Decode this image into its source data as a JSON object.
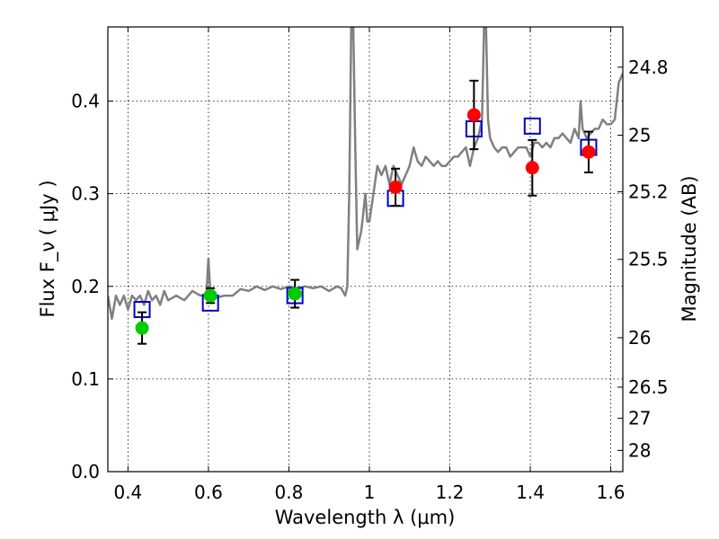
{
  "chart_data": {
    "type": "scatter",
    "xlabel": "Wavelength  λ (μm)",
    "ylabel": "Flux  F_ν  ( μJy )",
    "ylabel_right": "Magnitude (AB)",
    "xlim": [
      0.35,
      1.63
    ],
    "ylim": [
      0.0,
      0.48
    ],
    "grid": true,
    "x_ticks": [
      {
        "value": 0.4,
        "label": "0.4"
      },
      {
        "value": 0.6,
        "label": "0.6"
      },
      {
        "value": 0.8,
        "label": "0.8"
      },
      {
        "value": 1.0,
        "label": "1"
      },
      {
        "value": 1.2,
        "label": "1.2"
      },
      {
        "value": 1.4,
        "label": "1.4"
      },
      {
        "value": 1.6,
        "label": "1.6"
      }
    ],
    "y_ticks": [
      {
        "value": 0.0,
        "label": "0.0"
      },
      {
        "value": 0.1,
        "label": "0.1"
      },
      {
        "value": 0.2,
        "label": "0.2"
      },
      {
        "value": 0.3,
        "label": "0.3"
      },
      {
        "value": 0.4,
        "label": "0.4"
      }
    ],
    "right_ticks": [
      {
        "value": 24.8,
        "label": "24.8"
      },
      {
        "value": 25.0,
        "label": "25"
      },
      {
        "value": 25.2,
        "label": "25.2"
      },
      {
        "value": 25.5,
        "label": "25.5"
      },
      {
        "value": 26.0,
        "label": "26"
      },
      {
        "value": 26.5,
        "label": "26.5"
      },
      {
        "value": 27.0,
        "label": "27"
      },
      {
        "value": 28.0,
        "label": "28"
      }
    ],
    "series": [
      {
        "kind": "spectrum",
        "color": "#808080",
        "points": [
          [
            0.35,
            0.19
          ],
          [
            0.36,
            0.165
          ],
          [
            0.37,
            0.19
          ],
          [
            0.38,
            0.18
          ],
          [
            0.39,
            0.19
          ],
          [
            0.4,
            0.175
          ],
          [
            0.41,
            0.19
          ],
          [
            0.42,
            0.185
          ],
          [
            0.43,
            0.19
          ],
          [
            0.44,
            0.18
          ],
          [
            0.45,
            0.195
          ],
          [
            0.46,
            0.185
          ],
          [
            0.47,
            0.19
          ],
          [
            0.48,
            0.18
          ],
          [
            0.49,
            0.195
          ],
          [
            0.5,
            0.185
          ],
          [
            0.52,
            0.19
          ],
          [
            0.54,
            0.185
          ],
          [
            0.56,
            0.195
          ],
          [
            0.58,
            0.19
          ],
          [
            0.595,
            0.192
          ],
          [
            0.6,
            0.23
          ],
          [
            0.605,
            0.19
          ],
          [
            0.62,
            0.188
          ],
          [
            0.64,
            0.19
          ],
          [
            0.66,
            0.19
          ],
          [
            0.68,
            0.197
          ],
          [
            0.7,
            0.195
          ],
          [
            0.72,
            0.2
          ],
          [
            0.74,
            0.196
          ],
          [
            0.76,
            0.2
          ],
          [
            0.78,
            0.197
          ],
          [
            0.8,
            0.2
          ],
          [
            0.82,
            0.198
          ],
          [
            0.84,
            0.2
          ],
          [
            0.86,
            0.198
          ],
          [
            0.88,
            0.2
          ],
          [
            0.9,
            0.195
          ],
          [
            0.92,
            0.2
          ],
          [
            0.93,
            0.198
          ],
          [
            0.94,
            0.19
          ],
          [
            0.945,
            0.2
          ],
          [
            0.95,
            0.3
          ],
          [
            0.955,
            0.48
          ],
          [
            0.96,
            0.48
          ],
          [
            0.965,
            0.35
          ],
          [
            0.97,
            0.24
          ],
          [
            0.98,
            0.26
          ],
          [
            0.985,
            0.28
          ],
          [
            0.99,
            0.3
          ],
          [
            0.995,
            0.27
          ],
          [
            1.0,
            0.27
          ],
          [
            1.01,
            0.3
          ],
          [
            1.02,
            0.33
          ],
          [
            1.03,
            0.32
          ],
          [
            1.04,
            0.33
          ],
          [
            1.05,
            0.31
          ],
          [
            1.06,
            0.33
          ],
          [
            1.07,
            0.32
          ],
          [
            1.08,
            0.31
          ],
          [
            1.09,
            0.32
          ],
          [
            1.1,
            0.33
          ],
          [
            1.11,
            0.35
          ],
          [
            1.12,
            0.335
          ],
          [
            1.13,
            0.33
          ],
          [
            1.14,
            0.34
          ],
          [
            1.15,
            0.335
          ],
          [
            1.16,
            0.33
          ],
          [
            1.17,
            0.335
          ],
          [
            1.18,
            0.33
          ],
          [
            1.19,
            0.33
          ],
          [
            1.2,
            0.335
          ],
          [
            1.21,
            0.34
          ],
          [
            1.22,
            0.34
          ],
          [
            1.23,
            0.345
          ],
          [
            1.24,
            0.35
          ],
          [
            1.25,
            0.33
          ],
          [
            1.26,
            0.35
          ],
          [
            1.27,
            0.36
          ],
          [
            1.28,
            0.38
          ],
          [
            1.285,
            0.48
          ],
          [
            1.29,
            0.48
          ],
          [
            1.295,
            0.38
          ],
          [
            1.3,
            0.36
          ],
          [
            1.31,
            0.35
          ],
          [
            1.32,
            0.345
          ],
          [
            1.33,
            0.35
          ],
          [
            1.34,
            0.35
          ],
          [
            1.35,
            0.34
          ],
          [
            1.36,
            0.345
          ],
          [
            1.37,
            0.35
          ],
          [
            1.38,
            0.35
          ],
          [
            1.39,
            0.35
          ],
          [
            1.4,
            0.34
          ],
          [
            1.41,
            0.355
          ],
          [
            1.42,
            0.355
          ],
          [
            1.43,
            0.35
          ],
          [
            1.44,
            0.355
          ],
          [
            1.45,
            0.35
          ],
          [
            1.46,
            0.36
          ],
          [
            1.47,
            0.36
          ],
          [
            1.48,
            0.365
          ],
          [
            1.49,
            0.36
          ],
          [
            1.5,
            0.355
          ],
          [
            1.51,
            0.37
          ],
          [
            1.52,
            0.36
          ],
          [
            1.525,
            0.4
          ],
          [
            1.53,
            0.37
          ],
          [
            1.54,
            0.36
          ],
          [
            1.55,
            0.365
          ],
          [
            1.56,
            0.37
          ],
          [
            1.57,
            0.37
          ],
          [
            1.58,
            0.38
          ],
          [
            1.59,
            0.375
          ],
          [
            1.6,
            0.375
          ],
          [
            1.61,
            0.38
          ],
          [
            1.62,
            0.42
          ],
          [
            1.63,
            0.43
          ]
        ]
      },
      {
        "kind": "model",
        "marker": "square",
        "color": "#0000cc",
        "x": [
          0.435,
          0.605,
          0.815,
          1.065,
          1.26,
          1.405,
          1.545
        ],
        "y": [
          0.175,
          0.182,
          0.19,
          0.295,
          0.37,
          0.373,
          0.35
        ]
      },
      {
        "kind": "optical",
        "marker": "circle",
        "color": "#00cc00",
        "x": [
          0.435,
          0.605,
          0.815
        ],
        "y": [
          0.155,
          0.19,
          0.192
        ],
        "yerr": [
          0.017,
          0.008,
          0.015
        ]
      },
      {
        "kind": "infrared",
        "marker": "circle",
        "color": "#ff0000",
        "x": [
          1.065,
          1.26,
          1.405,
          1.545
        ],
        "y": [
          0.307,
          0.385,
          0.328,
          0.345
        ],
        "yerr": [
          0.02,
          0.037,
          0.03,
          0.022
        ]
      }
    ]
  }
}
